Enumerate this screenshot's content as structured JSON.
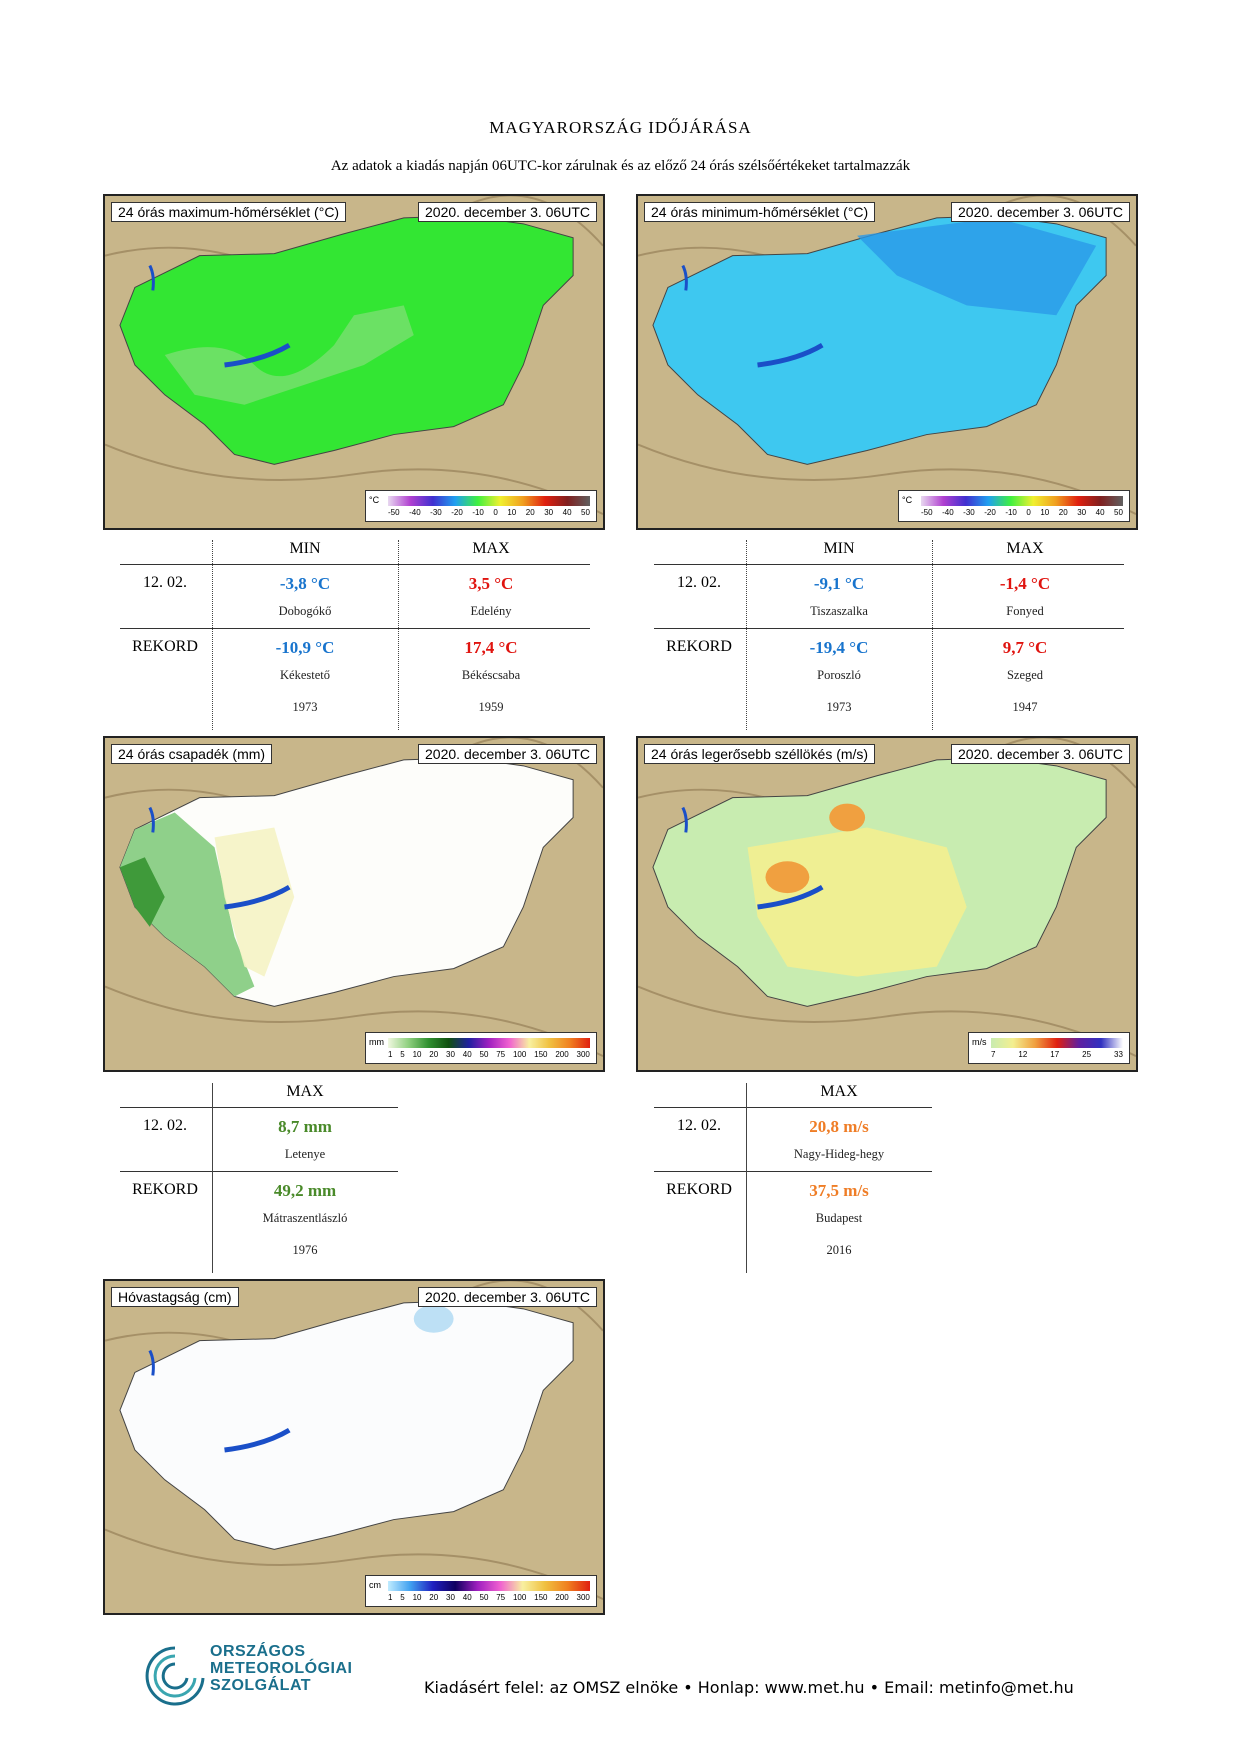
{
  "header": {
    "title": "MAGYARORSZÁG IDŐJÁRÁSA",
    "subtitle": "Az adatok a kiadás napján 06UTC-kor zárulnak és az előző 24 órás szélsőértékeket tartalmazzák"
  },
  "maps": {
    "max_temp": {
      "label": "24 órás maximum-hőmérséklet (°C)",
      "date": "2020. december 3. 06UTC",
      "unit": "°C",
      "ticks": [
        "-50",
        "-40",
        "-30",
        "-20",
        "-10",
        "0",
        "10",
        "20",
        "30",
        "40",
        "50"
      ]
    },
    "min_temp": {
      "label": "24 órás minimum-hőmérséklet (°C)",
      "date": "2020. december 3. 06UTC",
      "unit": "°C",
      "ticks": [
        "-50",
        "-40",
        "-30",
        "-20",
        "-10",
        "0",
        "10",
        "20",
        "30",
        "40",
        "50"
      ]
    },
    "precip": {
      "label": "24 órás csapadék (mm)",
      "date": "2020. december 3. 06UTC",
      "unit": "mm",
      "ticks": [
        "1",
        "5",
        "10",
        "20",
        "30",
        "40",
        "50",
        "75",
        "100",
        "150",
        "200",
        "300"
      ]
    },
    "gust": {
      "label": "24 órás legerősebb széllökés (m/s)",
      "date": "2020. december 3. 06UTC",
      "unit": "m/s",
      "ticks": [
        "7",
        "12",
        "17",
        "25",
        "33"
      ]
    },
    "snow": {
      "label": "Hóvastagság (cm)",
      "date": "2020. december 3. 06UTC",
      "unit": "cm",
      "ticks": [
        "1",
        "5",
        "10",
        "20",
        "30",
        "40",
        "50",
        "75",
        "100",
        "150",
        "200",
        "300"
      ]
    }
  },
  "tables": {
    "max_temp": {
      "col_min": "MIN",
      "col_max": "MAX",
      "row1_label": "12. 02.",
      "row1_min": "-3,8 °C",
      "row1_min_place": "Dobogókő",
      "row1_max": "3,5 °C",
      "row1_max_place": "Edelény",
      "row2_label": "REKORD",
      "row2_min": "-10,9 °C",
      "row2_min_place": "Kékestető",
      "row2_min_year": "1973",
      "row2_max": "17,4 °C",
      "row2_max_place": "Békéscsaba",
      "row2_max_year": "1959"
    },
    "min_temp": {
      "col_min": "MIN",
      "col_max": "MAX",
      "row1_label": "12. 02.",
      "row1_min": "-9,1 °C",
      "row1_min_place": "Tiszaszalka",
      "row1_max": "-1,4 °C",
      "row1_max_place": "Fonyed",
      "row2_label": "REKORD",
      "row2_min": "-19,4 °C",
      "row2_min_place": "Poroszló",
      "row2_min_year": "1973",
      "row2_max": "9,7 °C",
      "row2_max_place": "Szeged",
      "row2_max_year": "1947"
    },
    "precip": {
      "col_max": "MAX",
      "row1_label": "12. 02.",
      "row1_max": "8,7 mm",
      "row1_max_place": "Letenye",
      "row2_label": "REKORD",
      "row2_max": "49,2 mm",
      "row2_max_place": "Mátraszentlászló",
      "row2_max_year": "1976"
    },
    "gust": {
      "col_max": "MAX",
      "row1_label": "12. 02.",
      "row1_max": "20,8 m/s",
      "row1_max_place": "Nagy-Hideg-hegy",
      "row2_label": "REKORD",
      "row2_max": "37,5 m/s",
      "row2_max_place": "Budapest",
      "row2_max_year": "2016"
    }
  },
  "logo": {
    "line1": "ORSZÁGOS",
    "line2": "METEOROLÓGIAI",
    "line3": "SZOLGÁLAT"
  },
  "footer": {
    "text": "Kiadásért felel: az OMSZ elnöke • Honlap: www.met.hu • Email: metinfo@met.hu"
  },
  "colors": {
    "min_blue": "#1874cd",
    "max_red": "#e0140f",
    "precip_green": "#4a8a2a",
    "gust_orange": "#ef7d26",
    "logo_teal": "#1a6f8c"
  }
}
